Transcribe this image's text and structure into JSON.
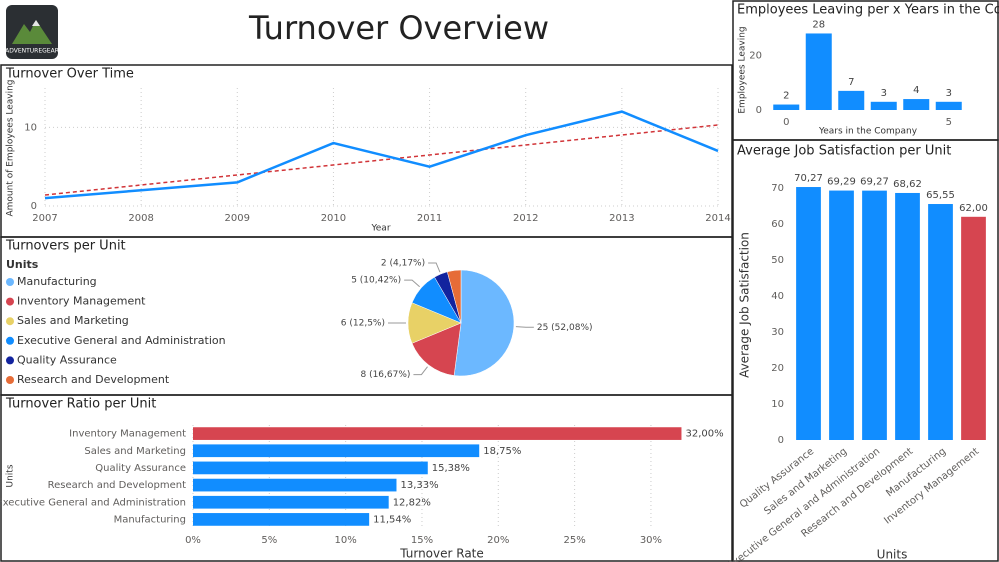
{
  "header": {
    "title": "Turnover Overview",
    "logo": "ADVENTUREGEAR"
  },
  "chart_data": [
    {
      "type": "line",
      "title": "Turnover Over Time",
      "x_label": "Year",
      "y_label": "Amount of Employees Leaving",
      "x": [
        2007,
        2008,
        2009,
        2010,
        2011,
        2012,
        2013,
        2014
      ],
      "values": [
        1,
        2,
        3,
        8,
        5,
        9,
        12,
        7
      ],
      "color": "#118dff",
      "trendline": {
        "x": [
          2007,
          2014
        ],
        "values": [
          1.4,
          10.3
        ],
        "color": "#d13438"
      },
      "xlim": [
        2007,
        2014
      ],
      "xticks": [
        2007,
        2008,
        2009,
        2010,
        2011,
        2012,
        2013,
        2014
      ],
      "ylim": [
        0,
        15
      ],
      "yticks": [
        0,
        10
      ],
      "grid": true
    },
    {
      "type": "bar",
      "title": "Employees Leaving per x Years in the Company",
      "x_label": "Years in the Company",
      "y_label": "Employees Leaving",
      "x": [
        0,
        1,
        2,
        3,
        4,
        5
      ],
      "values": [
        2,
        28,
        7,
        3,
        4,
        3
      ],
      "color": "#118dff",
      "xlim": [
        -0.5,
        5.5
      ],
      "xticks": [
        0,
        5
      ],
      "ylim": [
        0,
        30
      ],
      "yticks": [
        0,
        20
      ],
      "grid": false
    },
    {
      "type": "pie",
      "title": "Turnovers per Unit",
      "legend_title": "Units",
      "categories": [
        "Manufacturing",
        "Inventory Management",
        "Sales and Marketing",
        "Executive General and Administration",
        "Quality Assurance",
        "Research and Development"
      ],
      "values": [
        25,
        8,
        6,
        5,
        2,
        2
      ],
      "value_labels": [
        "25 (52,08%)",
        "8 (16,67%)",
        "6 (12,5%)",
        "5 (10,42%)",
        "2 (4,17%)",
        null
      ],
      "colors": [
        "#6cb8ff",
        "#d64550",
        "#e8d166",
        "#118dff",
        "#12239e",
        "#e66c37"
      ]
    },
    {
      "type": "bar",
      "orientation": "horizontal",
      "title": "Turnover Ratio per Unit",
      "x_label": "Turnover Rate",
      "y_label": "Units",
      "categories": [
        "Inventory Management",
        "Sales and Marketing",
        "Quality Assurance",
        "Research and Development",
        "Executive General and Administration",
        "Manufacturing"
      ],
      "values": [
        32,
        18.75,
        15.38,
        13.33,
        12.82,
        11.54
      ],
      "value_labels": [
        "32,00%",
        "18,75%",
        "15,38%",
        "13,33%",
        "12,82%",
        "11,54%"
      ],
      "colors": [
        "#d64550",
        "#118dff",
        "#118dff",
        "#118dff",
        "#118dff",
        "#118dff"
      ],
      "xlim": [
        0,
        34
      ],
      "xticks": [
        {
          "value": 0,
          "label": "0%"
        },
        {
          "value": 5,
          "label": "5%"
        },
        {
          "value": 10,
          "label": "10%"
        },
        {
          "value": 15,
          "label": "15%"
        },
        {
          "value": 20,
          "label": "20%"
        },
        {
          "value": 25,
          "label": "25%"
        },
        {
          "value": 30,
          "label": "30%"
        }
      ],
      "grid": true
    },
    {
      "type": "bar",
      "title": "Average Job Satisfaction per Unit",
      "x_label": "Units",
      "y_label": "Average Job Satisfaction",
      "categories": [
        "Quality Assurance",
        "Sales and Marketing",
        "Executive General and Administration",
        "Research and Development",
        "Manufacturing",
        "Inventory Management"
      ],
      "values": [
        70.27,
        69.29,
        69.27,
        68.62,
        65.55,
        62
      ],
      "value_labels": [
        "70,27",
        "69,29",
        "69,27",
        "68,62",
        "65,55",
        "62,00"
      ],
      "colors": [
        "#118dff",
        "#118dff",
        "#118dff",
        "#118dff",
        "#118dff",
        "#d64550"
      ],
      "ylim": [
        0,
        75
      ],
      "yticks": [
        0,
        10,
        20,
        30,
        40,
        50,
        60,
        70
      ],
      "grid": false
    }
  ]
}
